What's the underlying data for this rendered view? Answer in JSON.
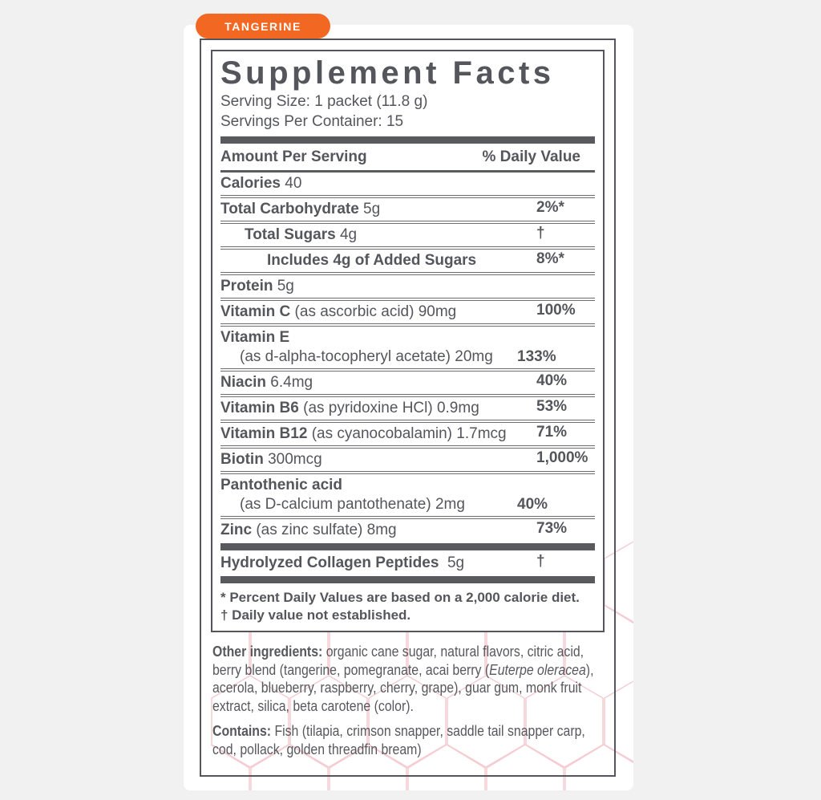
{
  "badge": {
    "label": "TANGERINE"
  },
  "label": {
    "title": "Supplement Facts",
    "serving_size": "Serving Size: 1 packet (11.8 g)",
    "servings_per_container": "Servings Per Container: 15",
    "columns": {
      "left": "Amount Per Serving",
      "right": "% Daily Value"
    },
    "rows": [
      {
        "name": "Calories",
        "detail": "40",
        "dv": "",
        "indent": 0
      },
      {
        "name": "Total Carbohydrate",
        "detail": "5g",
        "dv": "2%*",
        "indent": 0
      },
      {
        "name": "Total Sugars",
        "detail": "4g",
        "dv": "†",
        "indent": 1
      },
      {
        "name": "Includes 4g of Added Sugars",
        "detail": "",
        "dv": "8%*",
        "indent": 2
      },
      {
        "name": "Protein",
        "detail": "5g",
        "dv": "",
        "indent": 0
      },
      {
        "name": "Vitamin C",
        "detail": "(as ascorbic acid) 90mg",
        "dv": "100%",
        "indent": 0
      },
      {
        "name": "Vitamin E",
        "line2": "(as d-alpha-tocopheryl acetate) 20mg",
        "dv": "133%",
        "indent": 0
      },
      {
        "name": "Niacin",
        "detail": "6.4mg",
        "dv": "40%",
        "indent": 0
      },
      {
        "name": "Vitamin B6",
        "detail": "(as pyridoxine HCl) 0.9mg",
        "dv": "53%",
        "indent": 0
      },
      {
        "name": "Vitamin B12",
        "detail": "(as cyanocobalamin) 1.7mcg",
        "dv": "71%",
        "indent": 0
      },
      {
        "name": "Biotin",
        "detail": "300mcg",
        "dv": "1,000%",
        "indent": 0
      },
      {
        "name": "Pantothenic acid",
        "line2": "(as D-calcium pantothenate) 2mg",
        "dv": "40%",
        "indent": 0
      },
      {
        "name": "Zinc",
        "detail": "(as zinc sulfate) 8mg",
        "dv": "73%",
        "indent": 0
      }
    ],
    "collagen_row": {
      "name": "Hydrolyzed Collagen Peptides",
      "detail": "5g",
      "dv": "†"
    },
    "footnotes": [
      "* Percent Daily Values are based on a 2,000 calorie diet.",
      "† Daily value not established."
    ]
  },
  "other_ingredients": {
    "label": "Other ingredients:",
    "before_italic": "  organic cane sugar, natural flavors, citric acid, berry blend (tangerine, pomegranate, acai berry (",
    "italic": "Euterpe oleracea",
    "after_italic": "), acerola, blueberry, raspberry, cherry, grape), guar gum, monk fruit extract, silica, beta carotene (color)."
  },
  "contains": {
    "label": "Contains:",
    "text": " Fish (tilapia, crimson snapper, saddle tail snapper carp, cod, pollack, golden threadfin bream)"
  },
  "colors": {
    "badge_orange": "#f26822",
    "text_gray": "#54565b",
    "rule_gray": "#6b6d71",
    "bar_gray": "#595a5e",
    "hex_pink": "#f4ccd2",
    "page_background": "#f2f1f1"
  }
}
